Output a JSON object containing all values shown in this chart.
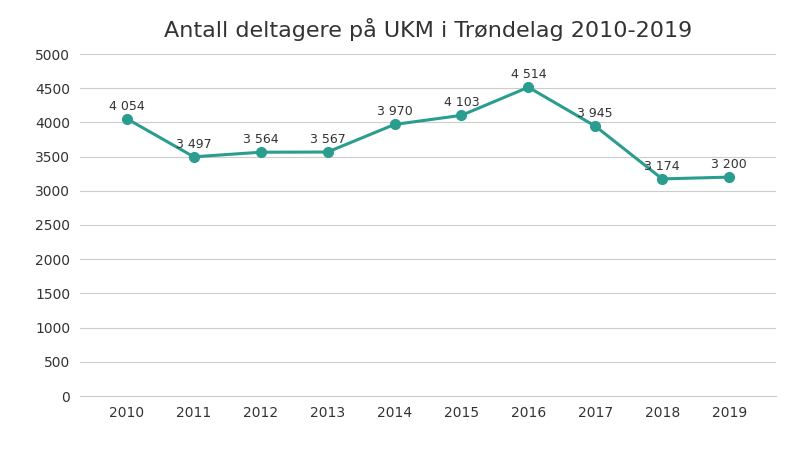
{
  "title": "Antall deltagere på UKM i Trøndelag 2010-2019",
  "years": [
    2010,
    2011,
    2012,
    2013,
    2014,
    2015,
    2016,
    2017,
    2018,
    2019
  ],
  "values": [
    4054,
    3497,
    3564,
    3567,
    3970,
    4103,
    4514,
    3945,
    3174,
    3200
  ],
  "labels": [
    "4 054",
    "3 497",
    "3 564",
    "3 567",
    "3 970",
    "4 103",
    "4 514",
    "3 945",
    "3 174",
    "3 200"
  ],
  "line_color": "#2a9d8f",
  "marker_color": "#2a9d8f",
  "background_color": "#ffffff",
  "grid_color": "#cccccc",
  "text_color": "#333333",
  "ylim": [
    0,
    5000
  ],
  "yticks": [
    0,
    500,
    1000,
    1500,
    2000,
    2500,
    3000,
    3500,
    4000,
    4500,
    5000
  ],
  "ytick_labels": [
    "0",
    "500",
    "1000",
    "1500",
    "2000",
    "2500",
    "3000",
    "3500",
    "4000",
    "4500",
    "5000"
  ],
  "title_fontsize": 16,
  "label_fontsize": 9,
  "tick_fontsize": 10,
  "line_width": 2.2,
  "marker_size": 7
}
